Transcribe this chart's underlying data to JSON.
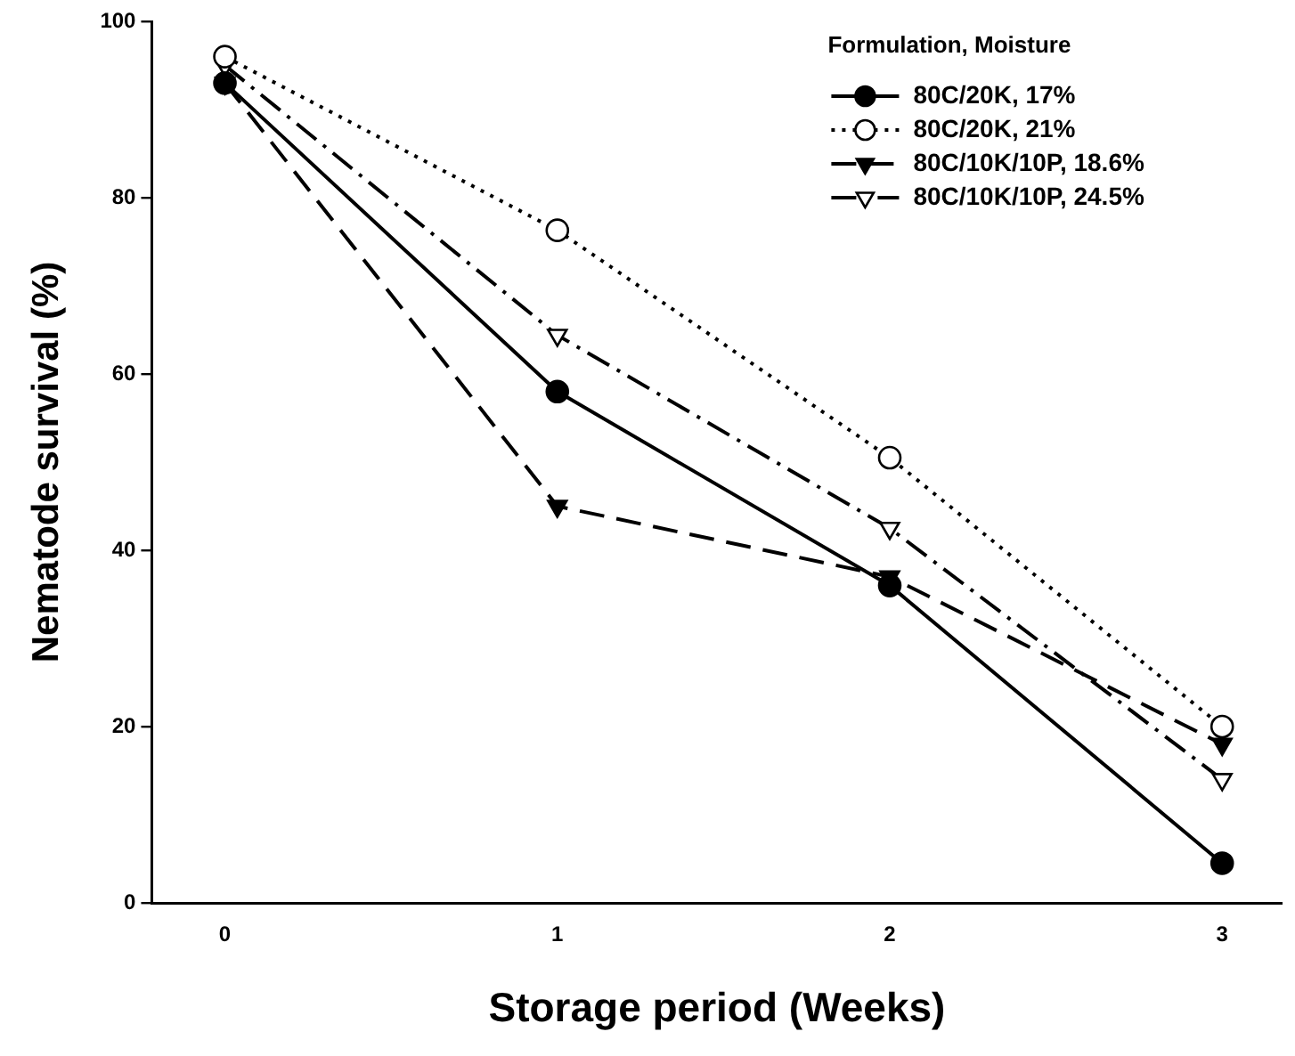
{
  "chart_data": {
    "type": "line",
    "xlabel": "Storage period (Weeks)",
    "ylabel": "Nematode survival (%)",
    "legend_title": "Formulation, Moisture",
    "legend": "top right",
    "grid": false,
    "x": [
      0,
      1,
      2,
      3
    ],
    "xlim": [
      -0.22,
      3.18
    ],
    "xticks": [
      0,
      1,
      2,
      3
    ],
    "ylim": [
      0,
      100
    ],
    "yticks": [
      0,
      20,
      40,
      60,
      80,
      100
    ],
    "series": [
      {
        "name": "80C/20K, 17%",
        "color": "#000000",
        "marker": "circle",
        "line_style": "solid",
        "values": [
          93,
          58,
          36,
          4.5
        ]
      },
      {
        "name": "80C/20K, 21%",
        "color": "#000000",
        "marker": "circle",
        "line_style": "dotted",
        "values": [
          96,
          76.3,
          50.5,
          20
        ]
      },
      {
        "name": "80C/10K/10P, 18.6%",
        "color": "#000000",
        "marker": "triangle",
        "line_style": "dashed",
        "values": [
          93,
          45,
          37,
          18
        ]
      },
      {
        "name": "80C/10K/10P, 24.5%",
        "color": "#000000",
        "marker": "triangle",
        "line_style": "dashdot",
        "values": [
          95,
          64.4,
          42.5,
          14
        ]
      }
    ]
  }
}
